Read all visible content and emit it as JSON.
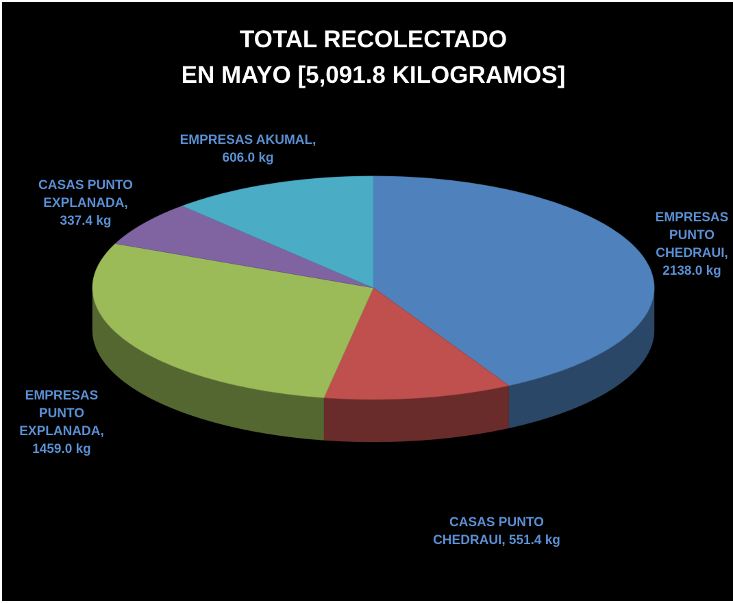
{
  "chart_data": {
    "type": "pie",
    "title": "TOTAL RECOLECTADO\nEN MAYO [5,091.8 KILOGRAMOS]",
    "values": [
      2138.0,
      551.4,
      1459.0,
      337.4,
      606.0
    ],
    "value_labels": [
      "EMPRESAS PUNTO CHEDRAUI, 2138.0 kg",
      "CASAS PUNTO CHEDRAUI, 551.4 kg",
      "EMPRESAS PUNTO EXPLANADA, 1459.0 kg",
      "CASAS PUNTO EXPLANADA, 337.4 kg",
      "EMPRESAS AKUMAL, 606.0 kg"
    ],
    "colors": [
      "#4f81bd",
      "#c0504d",
      "#9bbb59",
      "#8064a2",
      "#4bacc6"
    ]
  }
}
